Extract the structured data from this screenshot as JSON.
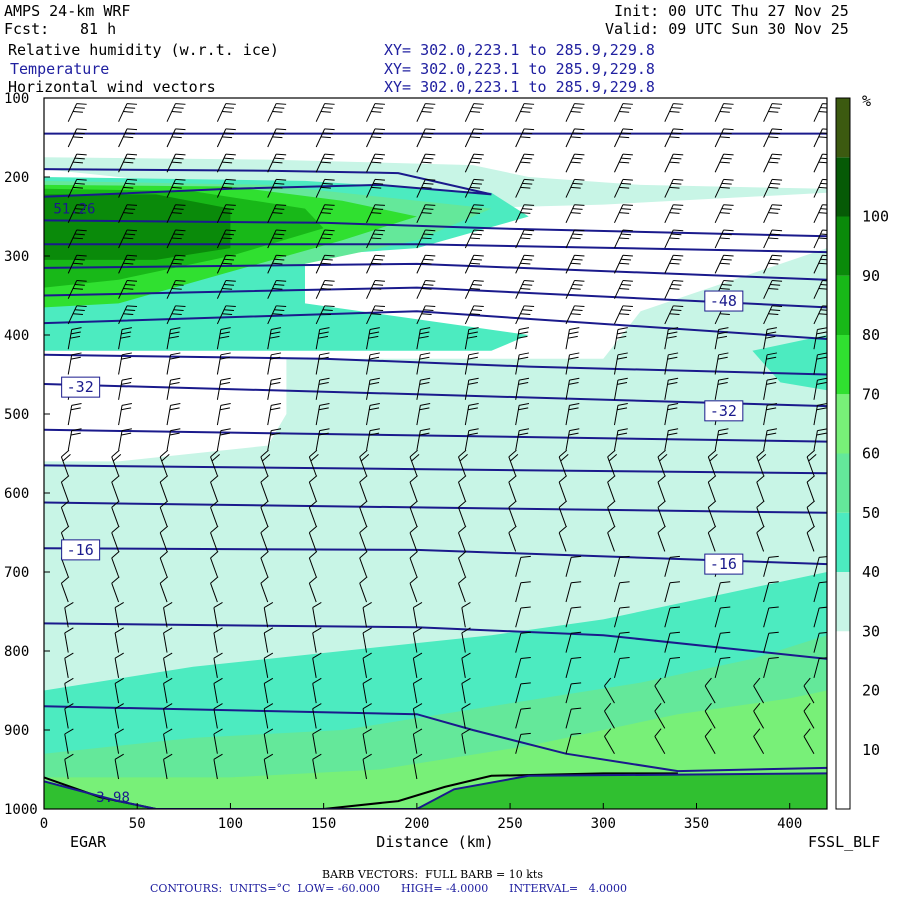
{
  "header": {
    "model": "AMPS 24-km WRF",
    "init": "Init: 00 UTC Thu 27 Nov 25",
    "fcst_label": "Fcst:",
    "fcst_value": "81 h",
    "valid": "Valid: 09 UTC Sun 30 Nov 25",
    "fields": [
      {
        "name": "Relative humidity (w.r.t. ice)",
        "xy": "XY= 302.0,223.1 to 285.9,229.8",
        "color": "#000000"
      },
      {
        "name": "Temperature",
        "xy": "XY= 302.0,223.1 to 285.9,229.8",
        "color": "#2020a0"
      },
      {
        "name": "Horizontal wind vectors",
        "xy": "XY= 302.0,223.1 to 285.9,229.8",
        "color": "#000000"
      }
    ]
  },
  "footer": {
    "left_station": "EGAR",
    "right_station": "FSSL_BLF",
    "barb": "BARB VECTORS:  FULL BARB = 10 kts",
    "contours": "CONTOURS:  UNITS=°C  LOW= -60.000      HIGH= -4.0000      INTERVAL=   4.0000"
  },
  "chart_data": {
    "type": "cross-section",
    "xlabel": "Distance (km)",
    "ylabel": "",
    "x_ticks": [
      0,
      50,
      100,
      150,
      200,
      250,
      300,
      350,
      400
    ],
    "y_ticks": [
      100,
      200,
      300,
      400,
      500,
      600,
      700,
      800,
      900,
      1000
    ],
    "xlim": [
      0,
      420
    ],
    "ylim": [
      1000,
      100
    ],
    "colorbar": {
      "unit": "%",
      "ticks": [
        10,
        20,
        30,
        40,
        50,
        60,
        70,
        80,
        90,
        100
      ],
      "colors": [
        "#ffffff",
        "#ffffff",
        "#ffffff",
        "#c8f5e6",
        "#4cebc0",
        "#64e89a",
        "#78f078",
        "#30e030",
        "#18b818",
        "#0a8a0a",
        "#065a06",
        "#3c5a10"
      ]
    },
    "temperature_contour_labels": [
      {
        "text": "-48",
        "x": 355,
        "p": 357
      },
      {
        "text": "-32",
        "x": 10,
        "p": 466
      },
      {
        "text": "-32",
        "x": 355,
        "p": 496
      },
      {
        "text": "-16",
        "x": 10,
        "p": 672
      },
      {
        "text": "-16",
        "x": 355,
        "p": 690
      }
    ],
    "annotations": [
      {
        "text": "51.26",
        "x": 5,
        "p": 240
      },
      {
        "text": "3.98",
        "x": 28,
        "p": 985
      }
    ]
  },
  "colors": {
    "contour": "#1a1a8c",
    "frame": "#000000"
  }
}
